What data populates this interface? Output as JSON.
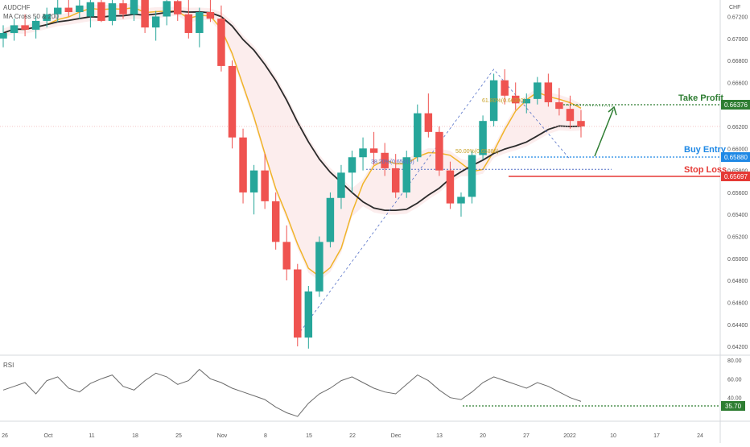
{
  "header": {
    "ticker": "AUDCHF",
    "indicator": "MA Cross 50 & 200",
    "currency": "CHF"
  },
  "price_axis": {
    "ticks": [
      "0.67200",
      "0.67000",
      "0.66800",
      "0.66600",
      "0.66400",
      "0.66200",
      "0.66000",
      "0.65800",
      "0.65600",
      "0.65400",
      "0.65200",
      "0.65000",
      "0.64800",
      "0.64600",
      "0.64400",
      "0.64200"
    ]
  },
  "rsi_axis": {
    "ticks": [
      "80.00",
      "60.00",
      "40.00"
    ]
  },
  "time_axis": {
    "ticks": [
      "26",
      "Oct",
      "11",
      "18",
      "25",
      "Nov",
      "8",
      "15",
      "22",
      "Dec",
      "13",
      "20",
      "27",
      "2022",
      "10",
      "17",
      "24"
    ]
  },
  "annotations": {
    "take_profit": {
      "label": "Take Profit",
      "price": "0.66376",
      "color": "#2e7d32"
    },
    "buy_entry": {
      "label": "Buy Entry",
      "price": "0.65880",
      "color": "#1e88e5"
    },
    "stop_loss": {
      "label": "Stop Loss",
      "price": "0.65697",
      "color": "#e53935"
    },
    "fib_618": "61.80%(0.66390)",
    "fib_382": "38.20%(0.65810)",
    "fib_50": "50.00%(0.65888)"
  },
  "rsi": {
    "title": "RSI",
    "current": "35.70",
    "color": "#2e7d32"
  },
  "chart_data": {
    "type": "candlestick",
    "currency": "CHF",
    "price_range": [
      0.6412,
      0.6735
    ],
    "rsi_range": [
      15,
      85
    ],
    "ma50_color": "#f0b429",
    "ma200_color": "#2b2b2b",
    "levels": {
      "take_profit": 0.66376,
      "buy_entry": 0.6588,
      "stop_loss": 0.65697,
      "fib_61_8": 0.6639,
      "fib_38_2": 0.6581
    },
    "candles": [
      [
        0.67,
        0.6712,
        0.6692,
        0.6705
      ],
      [
        0.6705,
        0.6718,
        0.6698,
        0.6712
      ],
      [
        0.6712,
        0.6722,
        0.6702,
        0.6708
      ],
      [
        0.6708,
        0.672,
        0.67,
        0.6716
      ],
      [
        0.6716,
        0.6728,
        0.671,
        0.6722
      ],
      [
        0.6722,
        0.6735,
        0.6715,
        0.6728
      ],
      [
        0.6728,
        0.674,
        0.672,
        0.6724
      ],
      [
        0.6724,
        0.6738,
        0.6718,
        0.673
      ],
      [
        0.672,
        0.6736,
        0.671,
        0.6733
      ],
      [
        0.6733,
        0.6742,
        0.6715,
        0.6716
      ],
      [
        0.6716,
        0.6735,
        0.6712,
        0.6732
      ],
      [
        0.6732,
        0.6742,
        0.6718,
        0.6722
      ],
      [
        0.6722,
        0.674,
        0.6716,
        0.6738
      ],
      [
        0.6738,
        0.6742,
        0.6705,
        0.671
      ],
      [
        0.671,
        0.6725,
        0.6698,
        0.672
      ],
      [
        0.672,
        0.6738,
        0.6712,
        0.6734
      ],
      [
        0.6734,
        0.6742,
        0.6716,
        0.6722
      ],
      [
        0.6722,
        0.6738,
        0.67,
        0.6705
      ],
      [
        0.6705,
        0.6728,
        0.6692,
        0.6724
      ],
      [
        0.6724,
        0.674,
        0.6715,
        0.6718
      ],
      [
        0.6718,
        0.673,
        0.667,
        0.6675
      ],
      [
        0.6675,
        0.668,
        0.66,
        0.661
      ],
      [
        0.661,
        0.6618,
        0.655,
        0.656
      ],
      [
        0.656,
        0.6585,
        0.654,
        0.658
      ],
      [
        0.658,
        0.6595,
        0.6545,
        0.6552
      ],
      [
        0.6552,
        0.656,
        0.6508,
        0.6515
      ],
      [
        0.6515,
        0.653,
        0.648,
        0.649
      ],
      [
        0.649,
        0.6495,
        0.642,
        0.6428
      ],
      [
        0.6428,
        0.6475,
        0.6418,
        0.647
      ],
      [
        0.647,
        0.652,
        0.6465,
        0.6515
      ],
      [
        0.6515,
        0.656,
        0.651,
        0.6555
      ],
      [
        0.6555,
        0.6585,
        0.6545,
        0.6578
      ],
      [
        0.6578,
        0.6598,
        0.656,
        0.6592
      ],
      [
        0.6592,
        0.661,
        0.658,
        0.66
      ],
      [
        0.66,
        0.6615,
        0.6585,
        0.6596
      ],
      [
        0.6596,
        0.6605,
        0.6575,
        0.6582
      ],
      [
        0.6582,
        0.6595,
        0.6555,
        0.656
      ],
      [
        0.656,
        0.6598,
        0.6555,
        0.6592
      ],
      [
        0.6592,
        0.664,
        0.6588,
        0.6632
      ],
      [
        0.6632,
        0.665,
        0.661,
        0.6615
      ],
      [
        0.6615,
        0.662,
        0.6575,
        0.658
      ],
      [
        0.658,
        0.6588,
        0.6545,
        0.655
      ],
      [
        0.655,
        0.656,
        0.6538,
        0.6556
      ],
      [
        0.6556,
        0.6598,
        0.655,
        0.6594
      ],
      [
        0.6594,
        0.663,
        0.659,
        0.6625
      ],
      [
        0.6625,
        0.6668,
        0.662,
        0.6662
      ],
      [
        0.6662,
        0.6672,
        0.664,
        0.6648
      ],
      [
        0.6648,
        0.666,
        0.6635,
        0.6641
      ],
      [
        0.6641,
        0.665,
        0.6632,
        0.6645
      ],
      [
        0.6645,
        0.6665,
        0.664,
        0.666
      ],
      [
        0.666,
        0.6668,
        0.6638,
        0.6642
      ],
      [
        0.6642,
        0.6655,
        0.663,
        0.6636
      ],
      [
        0.6636,
        0.6648,
        0.6618,
        0.6625
      ],
      [
        0.6625,
        0.6635,
        0.661,
        0.662
      ]
    ],
    "rsi_values": [
      48,
      52,
      56,
      44,
      58,
      62,
      50,
      46,
      55,
      60,
      64,
      52,
      48,
      58,
      66,
      62,
      54,
      58,
      70,
      60,
      56,
      50,
      46,
      42,
      38,
      30,
      24,
      20,
      34,
      44,
      50,
      58,
      62,
      56,
      50,
      46,
      44,
      54,
      64,
      58,
      48,
      40,
      38,
      46,
      56,
      62,
      58,
      54,
      50,
      56,
      52,
      46,
      40,
      36
    ]
  }
}
